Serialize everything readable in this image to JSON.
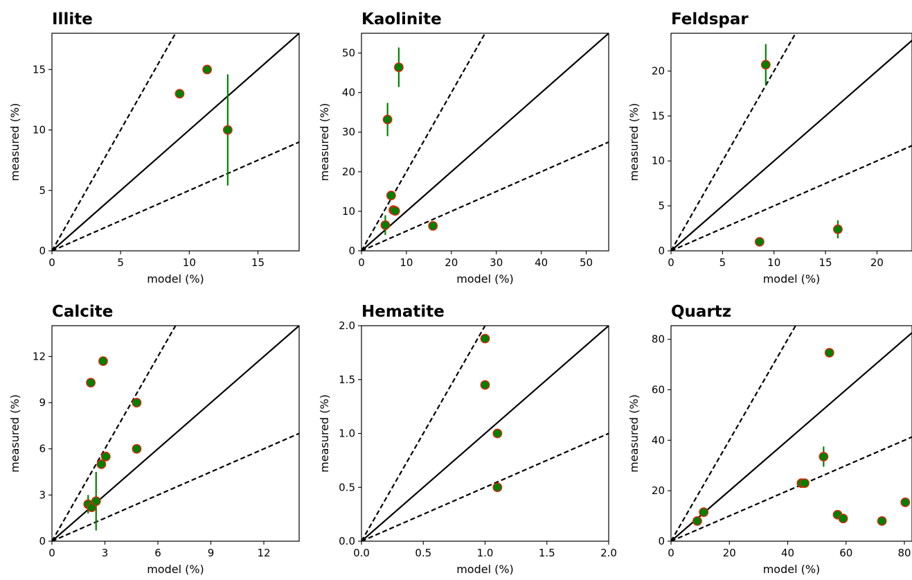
{
  "chart_data": [
    {
      "type": "scatter",
      "title": "Illite",
      "xlabel": "model (%)",
      "ylabel": "measured (%)",
      "xlim": [
        0,
        18
      ],
      "ylim": [
        0,
        18
      ],
      "xticks": [
        0,
        5,
        10,
        15
      ],
      "yticks": [
        0,
        5,
        10,
        15
      ],
      "xtick_labels": [
        "0",
        "5",
        "10",
        "15"
      ],
      "ytick_labels": [
        "0",
        "5",
        "10",
        "15"
      ],
      "reference_lines": [
        {
          "slope": 1,
          "style": "solid"
        },
        {
          "slope": 2,
          "style": "dashed"
        },
        {
          "slope": 0.5,
          "style": "dashed"
        }
      ],
      "points": [
        {
          "x": 9.3,
          "y": 13.0
        },
        {
          "x": 11.3,
          "y": 15.0
        },
        {
          "x": 12.8,
          "y": 10.0,
          "yerr": 4.6
        }
      ]
    },
    {
      "type": "scatter",
      "title": "Kaolinite",
      "xlabel": "model (%)",
      "ylabel": "measured (%)",
      "xlim": [
        0,
        55
      ],
      "ylim": [
        0,
        55
      ],
      "xticks": [
        0,
        10,
        20,
        30,
        40,
        50
      ],
      "yticks": [
        0,
        10,
        20,
        30,
        40,
        50
      ],
      "xtick_labels": [
        "0",
        "10",
        "20",
        "30",
        "40",
        "50"
      ],
      "ytick_labels": [
        "0",
        "10",
        "20",
        "30",
        "40",
        "50"
      ],
      "reference_lines": [
        {
          "slope": 1,
          "style": "solid"
        },
        {
          "slope": 2,
          "style": "dashed"
        },
        {
          "slope": 0.5,
          "style": "dashed"
        }
      ],
      "points": [
        {
          "x": 5.3,
          "y": 6.5,
          "yerr": 2.5
        },
        {
          "x": 5.8,
          "y": 33.2,
          "yerr": 4.2
        },
        {
          "x": 6.6,
          "y": 14.0
        },
        {
          "x": 7.1,
          "y": 10.3
        },
        {
          "x": 7.5,
          "y": 10.1
        },
        {
          "x": 8.3,
          "y": 46.4,
          "yerr": 5.0
        },
        {
          "x": 15.9,
          "y": 6.3
        }
      ]
    },
    {
      "type": "scatter",
      "title": "Feldspar",
      "xlabel": "model (%)",
      "ylabel": "measured (%)",
      "xlim": [
        0,
        23.4
      ],
      "ylim": [
        0,
        24.2
      ],
      "xticks": [
        0,
        5,
        10,
        15,
        20
      ],
      "yticks": [
        0,
        5,
        10,
        15,
        20
      ],
      "xtick_labels": [
        "0",
        "5",
        "10",
        "15",
        "20"
      ],
      "ytick_labels": [
        "0",
        "5",
        "10",
        "15",
        "20"
      ],
      "reference_lines": [
        {
          "slope": 1,
          "style": "solid"
        },
        {
          "slope": 2,
          "style": "dashed"
        },
        {
          "slope": 0.5,
          "style": "dashed"
        }
      ],
      "points": [
        {
          "x": 8.6,
          "y": 1.0
        },
        {
          "x": 9.2,
          "y": 20.7,
          "yerr": 2.3
        },
        {
          "x": 16.2,
          "y": 2.4,
          "yerr": 1.0
        }
      ]
    },
    {
      "type": "scatter",
      "title": "Calcite",
      "xlabel": "model (%)",
      "ylabel": "measured (%)",
      "xlim": [
        0,
        14
      ],
      "ylim": [
        0,
        14
      ],
      "xticks": [
        0,
        3,
        6,
        9,
        12
      ],
      "yticks": [
        0,
        3,
        6,
        9,
        12
      ],
      "xtick_labels": [
        "0",
        "3",
        "6",
        "9",
        "12"
      ],
      "ytick_labels": [
        "0",
        "3",
        "6",
        "9",
        "12"
      ],
      "reference_lines": [
        {
          "slope": 1,
          "style": "solid"
        },
        {
          "slope": 2,
          "style": "dashed"
        },
        {
          "slope": 0.5,
          "style": "dashed"
        }
      ],
      "points": [
        {
          "x": 2.05,
          "y": 2.4,
          "yerr": 0.6
        },
        {
          "x": 2.2,
          "y": 10.3
        },
        {
          "x": 2.25,
          "y": 2.2
        },
        {
          "x": 2.5,
          "y": 2.6,
          "yerr": 1.9
        },
        {
          "x": 2.8,
          "y": 5.0
        },
        {
          "x": 2.9,
          "y": 11.7
        },
        {
          "x": 3.05,
          "y": 5.5
        },
        {
          "x": 4.8,
          "y": 9.0
        },
        {
          "x": 4.8,
          "y": 6.0
        }
      ]
    },
    {
      "type": "scatter",
      "title": "Hematite",
      "xlabel": "model (%)",
      "ylabel": "measured (%)",
      "xlim": [
        0,
        2.0
      ],
      "ylim": [
        0,
        2.0
      ],
      "xticks": [
        0,
        0.5,
        1.0,
        1.5,
        2.0
      ],
      "yticks": [
        0,
        0.5,
        1.0,
        1.5,
        2.0
      ],
      "xtick_labels": [
        "0.0",
        "0.5",
        "1.0",
        "1.5",
        "2.0"
      ],
      "ytick_labels": [
        "0.0",
        "0.5",
        "1.0",
        "1.5",
        "2.0"
      ],
      "reference_lines": [
        {
          "slope": 1,
          "style": "solid"
        },
        {
          "slope": 2,
          "style": "dashed"
        },
        {
          "slope": 0.5,
          "style": "dashed"
        }
      ],
      "points": [
        {
          "x": 1.0,
          "y": 1.88
        },
        {
          "x": 1.0,
          "y": 1.45
        },
        {
          "x": 1.1,
          "y": 1.0
        },
        {
          "x": 1.1,
          "y": 0.5
        }
      ]
    },
    {
      "type": "scatter",
      "title": "Quartz",
      "xlabel": "model (%)",
      "ylabel": "measured (%)",
      "xlim": [
        0,
        82.6
      ],
      "ylim": [
        0,
        85.4
      ],
      "xticks": [
        0,
        20,
        40,
        60,
        80
      ],
      "yticks": [
        0,
        20,
        40,
        60,
        80
      ],
      "xtick_labels": [
        "0",
        "20",
        "40",
        "60",
        "80"
      ],
      "ytick_labels": [
        "0",
        "20",
        "40",
        "60",
        "80"
      ],
      "reference_lines": [
        {
          "slope": 1,
          "style": "solid"
        },
        {
          "slope": 2,
          "style": "dashed"
        },
        {
          "slope": 0.5,
          "style": "dashed"
        }
      ],
      "points": [
        {
          "x": 9.0,
          "y": 8.0
        },
        {
          "x": 11.2,
          "y": 11.5
        },
        {
          "x": 44.7,
          "y": 23.0
        },
        {
          "x": 45.8,
          "y": 23.0
        },
        {
          "x": 52.3,
          "y": 33.5,
          "yerr": 4.0
        },
        {
          "x": 54.3,
          "y": 74.7
        },
        {
          "x": 57.1,
          "y": 10.5
        },
        {
          "x": 59.0,
          "y": 9.0
        },
        {
          "x": 72.3,
          "y": 8.0
        },
        {
          "x": 80.3,
          "y": 15.4
        }
      ]
    }
  ],
  "colors": {
    "marker_fill": "#008000",
    "marker_edge": "#e8200c",
    "error_bar": "#008000",
    "lines": "#000000"
  }
}
